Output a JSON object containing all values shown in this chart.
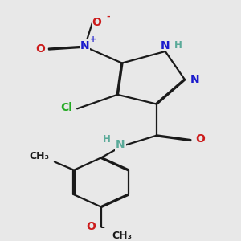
{
  "bg_color": "#e8e8e8",
  "bond_color": "#1a1a1a",
  "bond_width": 1.6,
  "atom_colors": {
    "C": "#1a1a1a",
    "H": "#5aaa99",
    "N": "#1a1acc",
    "O": "#cc1a1a",
    "Cl": "#22aa22"
  },
  "fs": 10,
  "fs_s": 8,
  "dbl": 0.018
}
